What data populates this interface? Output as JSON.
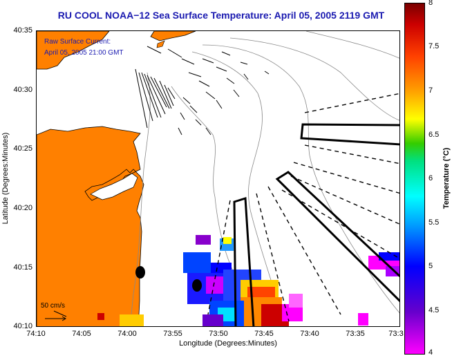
{
  "title": "RU COOL  NOAA−12  Sea Surface Temperature:  April 05, 2005 2119 GMT",
  "overlay": {
    "line1": "Raw Surface Current:",
    "line2": "April 05, 2005 21:00 GMT",
    "scale_label": "50 cm/s"
  },
  "axes": {
    "ylabel": "Latitude (Degrees:Minutes)",
    "xlabel": "Longitude (Degrees:Minutes)",
    "yticks": [
      "40:35",
      "40:30",
      "40:25",
      "40:20",
      "40:15",
      "40:10"
    ],
    "xticks": [
      "74:10",
      "74:05",
      "74:00",
      "73:55",
      "73:50",
      "73:45",
      "73:40",
      "73:35",
      "73:3"
    ]
  },
  "colorbar": {
    "label": "Temperature (°C)",
    "ticks": [
      "8",
      "7.5",
      "7",
      "6.5",
      "6",
      "5.5",
      "5",
      "4.5",
      "4"
    ],
    "range": [
      4,
      8
    ]
  },
  "colors": {
    "land": "#ff8000",
    "title": "#1a1ab0"
  }
}
